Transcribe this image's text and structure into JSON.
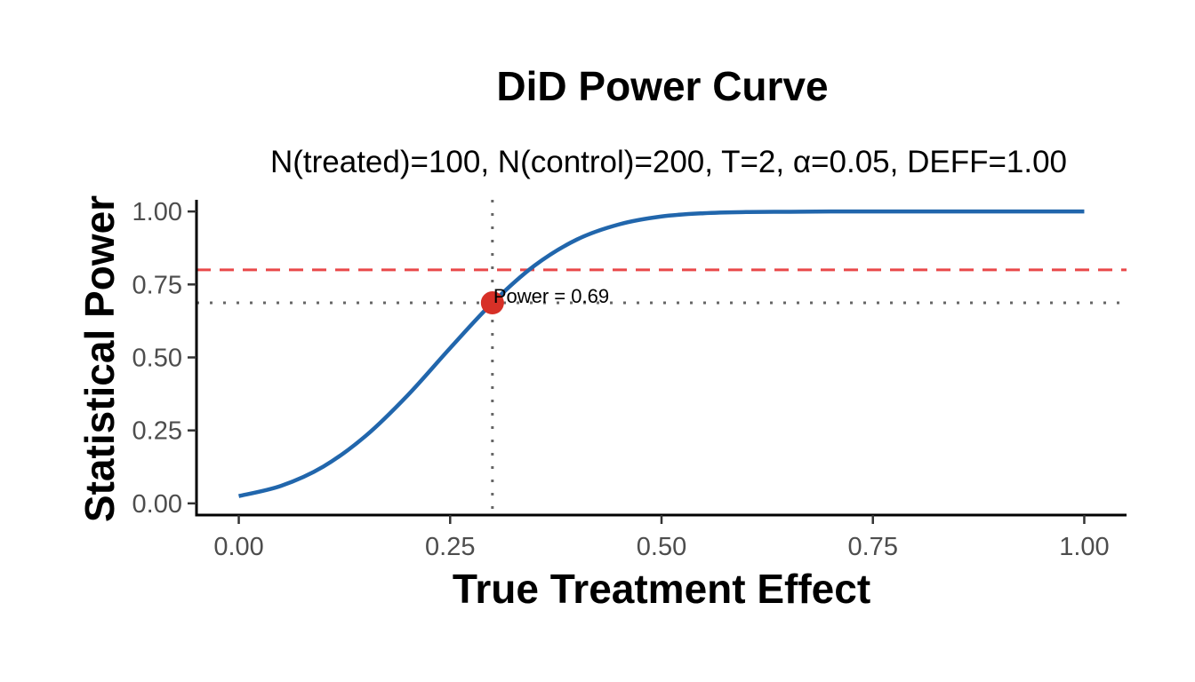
{
  "chart_data": {
    "type": "line",
    "title": "DiD Power Curve",
    "subtitle": "N(treated)=100, N(control)=200, T=2, α=0.05, DEFF=1.00",
    "xlabel": "True Treatment Effect",
    "ylabel": "Statistical Power",
    "xlim": [
      -0.05,
      1.05
    ],
    "ylim": [
      -0.04,
      1.04
    ],
    "grid": false,
    "legend": "none",
    "x_ticks": [
      0,
      0.25,
      0.5,
      0.75,
      1.0
    ],
    "x_tick_labels": [
      "0.00",
      "0.25",
      "0.50",
      "0.75",
      "1.00"
    ],
    "y_ticks": [
      0,
      0.25,
      0.5,
      0.75,
      1.0
    ],
    "y_tick_labels": [
      "0.00",
      "0.25",
      "0.50",
      "0.75",
      "1.00"
    ],
    "series": [
      {
        "name": "Power",
        "color": "#2166ac",
        "x": [
          0.0,
          0.05,
          0.1,
          0.15,
          0.2,
          0.25,
          0.3,
          0.35,
          0.4,
          0.45,
          0.5,
          0.55,
          0.6,
          0.65,
          0.7,
          0.75,
          0.8,
          0.85,
          0.9,
          0.95,
          1.0
        ],
        "y": [
          0.025,
          0.06,
          0.126,
          0.231,
          0.371,
          0.532,
          0.687,
          0.815,
          0.904,
          0.956,
          0.983,
          0.994,
          0.998,
          0.999,
          1.0,
          1.0,
          1.0,
          1.0,
          1.0,
          1.0,
          1.0
        ]
      }
    ],
    "reference_lines": {
      "target_power": {
        "y": 0.8,
        "color": "#e41a1c",
        "style": "dashed"
      },
      "observed_power": {
        "y": 0.687,
        "color": "#666666",
        "style": "dotted"
      },
      "observed_effect": {
        "x": 0.3,
        "color": "#666666",
        "style": "dotted"
      }
    },
    "highlight_point": {
      "x": 0.3,
      "y": 0.687,
      "color": "#d73027"
    },
    "annotations": [
      {
        "text": "Power = 0.69",
        "x": 0.3,
        "y": 0.687
      }
    ]
  }
}
